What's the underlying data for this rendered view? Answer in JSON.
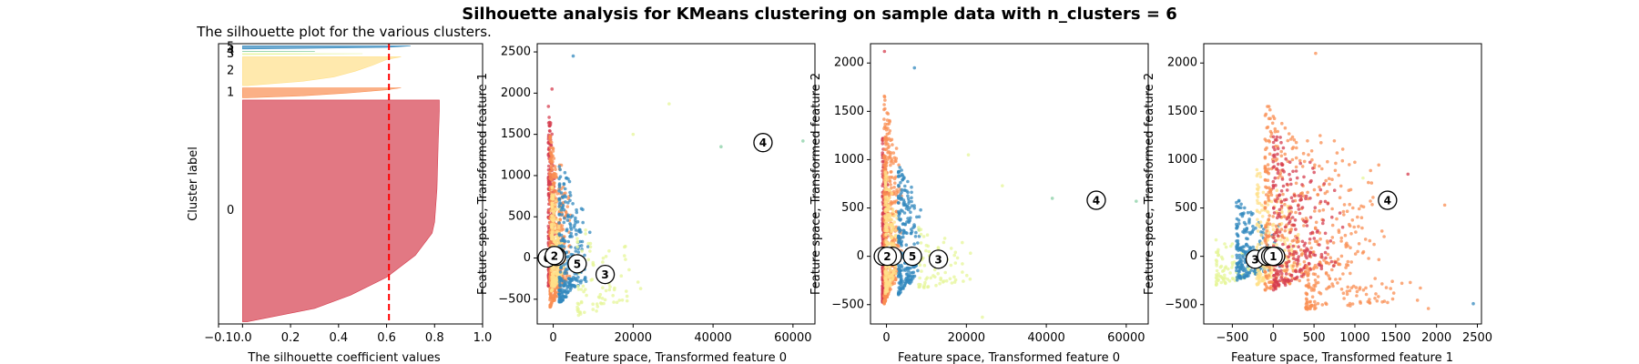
{
  "figure": {
    "suptitle": "Silhouette analysis for KMeans clustering on sample data with n_clusters = 6"
  },
  "colors": {
    "cluster_0": "#d53e4f",
    "cluster_1": "#f98e52",
    "cluster_2": "#ffe08a",
    "cluster_3": "#e6f598",
    "cluster_4": "#88cfa4",
    "cluster_5": "#3288bd",
    "average_line": "#ff0000"
  },
  "chart_data": [
    {
      "type": "area",
      "title": "The silhouette plot for the various clusters.",
      "xlabel": "The silhouette coefficient values",
      "ylabel": "Cluster label",
      "xlim": [
        -0.1,
        1.0
      ],
      "xticks": [
        "−0.1",
        "0.0",
        "0.2",
        "0.4",
        "0.6",
        "0.8",
        "1.0"
      ],
      "xtick_values": [
        -0.1,
        0.0,
        0.2,
        0.4,
        0.6,
        0.8,
        1.0
      ],
      "average_silhouette": 0.61,
      "clusters": [
        {
          "label": "0",
          "size": 1000,
          "max": 0.82,
          "shape": [
            [
              0,
              0.82
            ],
            [
              0.05,
              0.82
            ],
            [
              0.2,
              0.815
            ],
            [
              0.4,
              0.81
            ],
            [
              0.55,
              0.8
            ],
            [
              0.6,
              0.79
            ],
            [
              0.7,
              0.72
            ],
            [
              0.8,
              0.6
            ],
            [
              0.88,
              0.45
            ],
            [
              0.94,
              0.3
            ],
            [
              1,
              0.02
            ]
          ]
        },
        {
          "label": "1",
          "size": 45,
          "max": 0.66,
          "shape": [
            [
              0,
              0.66
            ],
            [
              0.2,
              0.6
            ],
            [
              0.5,
              0.45
            ],
            [
              0.8,
              0.25
            ],
            [
              1,
              0.02
            ]
          ]
        },
        {
          "label": "2",
          "size": 130,
          "max": 0.66,
          "shape": [
            [
              0,
              0.66
            ],
            [
              0.1,
              0.6
            ],
            [
              0.3,
              0.54
            ],
            [
              0.5,
              0.47
            ],
            [
              0.7,
              0.38
            ],
            [
              0.85,
              0.25
            ],
            [
              1,
              0.02
            ]
          ]
        },
        {
          "label": "3",
          "size": 4,
          "max": 0.5,
          "shape": [
            [
              0,
              0.5
            ],
            [
              1,
              0.02
            ]
          ]
        },
        {
          "label": "4",
          "size": 1,
          "max": 0.3,
          "shape": [
            [
              0,
              0.3
            ],
            [
              1,
              0.3
            ]
          ]
        },
        {
          "label": "5",
          "size": 14,
          "max": 0.7,
          "shape": [
            [
              0,
              0.7
            ],
            [
              0.5,
              0.6
            ],
            [
              1,
              0.02
            ]
          ]
        }
      ]
    },
    {
      "type": "scatter",
      "title": "",
      "xlabel": "Feature space, Transformed feature 0",
      "ylabel": "Feature space, Transformed feature 1",
      "xlim": [
        -4000,
        65500
      ],
      "ylim": [
        -800,
        2600
      ],
      "xticks": [
        "0",
        "20000",
        "40000",
        "60000"
      ],
      "xtick_values": [
        0,
        20000,
        40000,
        60000
      ],
      "yticks": [
        "−500",
        "0",
        "500",
        "1000",
        "1500",
        "2000",
        "2500"
      ],
      "ytick_values": [
        -500,
        0,
        500,
        1000,
        1500,
        2000,
        2500
      ],
      "centers": [
        {
          "label": "0",
          "x": -1500,
          "y": 0
        },
        {
          "label": "1",
          "x": 800,
          "y": 20
        },
        {
          "label": "2",
          "x": 300,
          "y": 30
        },
        {
          "label": "3",
          "x": 13000,
          "y": -200
        },
        {
          "label": "4",
          "x": 52500,
          "y": 1400
        },
        {
          "label": "5",
          "x": 6000,
          "y": -70
        }
      ],
      "clouds": [
        {
          "cluster": 0,
          "n": 260,
          "x": [
            -1200,
            600
          ],
          "y": [
            -350,
            1900
          ]
        },
        {
          "cluster": 1,
          "n": 420,
          "x": [
            -800,
            4500
          ],
          "y": [
            -600,
            1500
          ]
        },
        {
          "cluster": 2,
          "n": 200,
          "x": [
            -400,
            3200
          ],
          "y": [
            -400,
            900
          ]
        },
        {
          "cluster": 5,
          "n": 260,
          "x": [
            1500,
            9500
          ],
          "y": [
            -550,
            1150
          ]
        },
        {
          "cluster": 3,
          "n": 80,
          "x": [
            6000,
            24000
          ],
          "y": [
            -700,
            400
          ]
        }
      ],
      "outliers": [
        {
          "cluster": 5,
          "x": 5000,
          "y": 2450
        },
        {
          "cluster": 4,
          "x": 42000,
          "y": 1350
        },
        {
          "cluster": 4,
          "x": 62500,
          "y": 1420
        },
        {
          "cluster": 3,
          "x": 29000,
          "y": 1870
        },
        {
          "cluster": 3,
          "x": 20000,
          "y": 1500
        },
        {
          "cluster": 3,
          "x": 18500,
          "y": -520
        },
        {
          "cluster": 0,
          "x": -300,
          "y": 2050
        }
      ]
    },
    {
      "type": "scatter",
      "title": "",
      "xlabel": "Feature space, Transformed feature 0",
      "ylabel": "Feature space, Transformed feature 2",
      "xlim": [
        -4000,
        65500
      ],
      "ylim": [
        -700,
        2200
      ],
      "xticks": [
        "0",
        "20000",
        "40000",
        "60000"
      ],
      "xtick_values": [
        0,
        20000,
        40000,
        60000
      ],
      "yticks": [
        "−500",
        "0",
        "500",
        "1000",
        "1500",
        "2000"
      ],
      "ytick_values": [
        -500,
        0,
        500,
        1000,
        1500,
        2000
      ],
      "centers": [
        {
          "label": "0",
          "x": -800,
          "y": 0
        },
        {
          "label": "1",
          "x": 1500,
          "y": 0
        },
        {
          "label": "2",
          "x": 200,
          "y": 0
        },
        {
          "label": "3",
          "x": 13000,
          "y": -30
        },
        {
          "label": "4",
          "x": 52500,
          "y": 580
        },
        {
          "label": "5",
          "x": 6500,
          "y": 0
        }
      ],
      "clouds": [
        {
          "cluster": 0,
          "n": 260,
          "x": [
            -1000,
            500
          ],
          "y": [
            -500,
            1300
          ]
        },
        {
          "cluster": 1,
          "n": 420,
          "x": [
            -600,
            4000
          ],
          "y": [
            -500,
            1700
          ]
        },
        {
          "cluster": 2,
          "n": 200,
          "x": [
            -300,
            3000
          ],
          "y": [
            -400,
            900
          ]
        },
        {
          "cluster": 5,
          "n": 260,
          "x": [
            3000,
            9500
          ],
          "y": [
            -400,
            1000
          ]
        },
        {
          "cluster": 3,
          "n": 80,
          "x": [
            8000,
            24000
          ],
          "y": [
            -350,
            300
          ]
        }
      ],
      "outliers": [
        {
          "cluster": 5,
          "x": 7000,
          "y": 1950
        },
        {
          "cluster": 4,
          "x": 41500,
          "y": 600
        },
        {
          "cluster": 4,
          "x": 62500,
          "y": 570
        },
        {
          "cluster": 3,
          "x": 29000,
          "y": 730
        },
        {
          "cluster": 3,
          "x": 24000,
          "y": -630
        },
        {
          "cluster": 3,
          "x": 20500,
          "y": 1050
        },
        {
          "cluster": 0,
          "x": -500,
          "y": 2120
        }
      ]
    },
    {
      "type": "scatter",
      "title": "",
      "xlabel": "Feature space, Transformed feature 1",
      "ylabel": "Feature space, Transformed feature 2",
      "xlim": [
        -850,
        2550
      ],
      "ylim": [
        -700,
        2200
      ],
      "xticks": [
        "−500",
        "0",
        "500",
        "1000",
        "1500",
        "2000",
        "2500"
      ],
      "xtick_values": [
        -500,
        0,
        500,
        1000,
        1500,
        2000,
        2500
      ],
      "yticks": [
        "−500",
        "0",
        "500",
        "1000",
        "1500",
        "2000"
      ],
      "ytick_values": [
        -500,
        0,
        500,
        1000,
        1500,
        2000
      ],
      "centers": [
        {
          "label": "3",
          "x": -220,
          "y": -30
        },
        {
          "label": "5",
          "x": -80,
          "y": 0
        },
        {
          "label": "0",
          "x": -30,
          "y": 0
        },
        {
          "label": "2",
          "x": 30,
          "y": 0
        },
        {
          "label": "1",
          "x": 0,
          "y": 0
        },
        {
          "label": "4",
          "x": 1400,
          "y": 580
        }
      ],
      "clouds": [
        {
          "cluster": 3,
          "n": 90,
          "x": [
            -700,
            -100
          ],
          "y": [
            -300,
            200
          ]
        },
        {
          "cluster": 5,
          "n": 220,
          "x": [
            -450,
            200
          ],
          "y": [
            -250,
            600
          ]
        },
        {
          "cluster": 2,
          "n": 200,
          "x": [
            -200,
            400
          ],
          "y": [
            -300,
            900
          ]
        },
        {
          "cluster": 1,
          "n": 420,
          "x": [
            -100,
            1500
          ],
          "y": [
            -350,
            1600
          ]
        },
        {
          "cluster": 0,
          "n": 260,
          "x": [
            0,
            900
          ],
          "y": [
            -350,
            1300
          ]
        },
        {
          "cluster": 1,
          "n": 120,
          "x": [
            400,
            1900
          ],
          "y": [
            -550,
            -100
          ]
        }
      ],
      "outliers": [
        {
          "cluster": 1,
          "x": 520,
          "y": 2100
        },
        {
          "cluster": 1,
          "x": 2100,
          "y": 530
        },
        {
          "cluster": 5,
          "x": 2450,
          "y": -490
        },
        {
          "cluster": 3,
          "x": 1100,
          "y": 810
        },
        {
          "cluster": 0,
          "x": 1650,
          "y": 850
        },
        {
          "cluster": 1,
          "x": 1900,
          "y": -540
        }
      ]
    }
  ]
}
